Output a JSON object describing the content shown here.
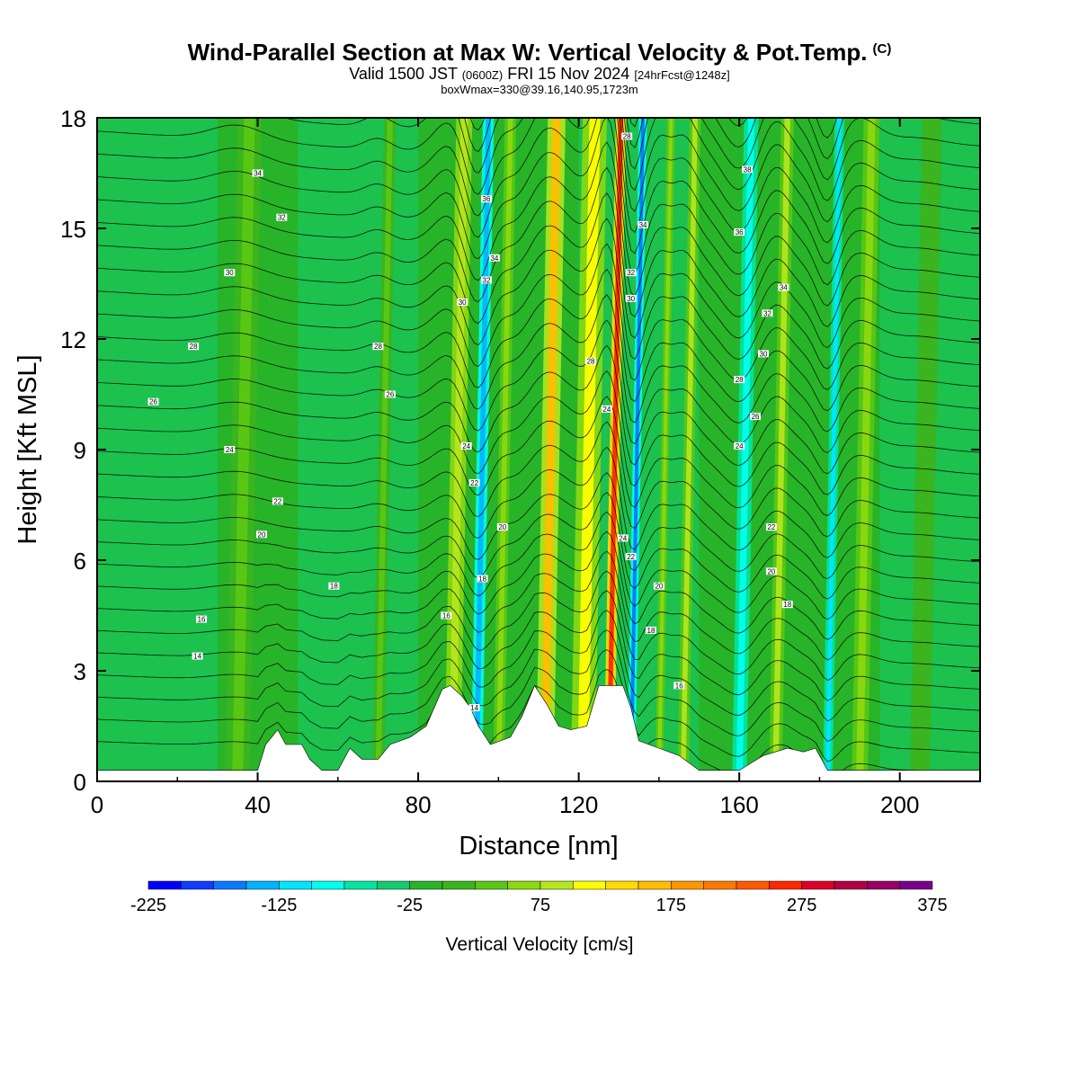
{
  "header": {
    "title": "Wind-Parallel Section at Max W: Vertical Velocity & Pot.Temp.",
    "copyright": "(C)",
    "valid_prefix": "Valid 1500 JST",
    "valid_utc": "(0600Z)",
    "valid_date": "FRI 15 Nov 2024",
    "forecast": "[24hrFcst@1248z]",
    "box_info": "boxWmax=330@39.16,140.95,1723m"
  },
  "chart_data": {
    "type": "heatmap",
    "xlabel": "Distance [nm]",
    "ylabel": "Height [Kft MSL]",
    "xlim": [
      0,
      220
    ],
    "ylim": [
      0,
      18
    ],
    "x_ticks": [
      "0",
      "40",
      "80",
      "120",
      "160",
      "200"
    ],
    "y_ticks": [
      "0",
      "3",
      "6",
      "9",
      "12",
      "15",
      "18"
    ],
    "colorbar": {
      "title": "Vertical Velocity [cm/s]",
      "labels": [
        "-225",
        "-125",
        "-25",
        "75",
        "175",
        "275",
        "375"
      ],
      "bounds": [
        -225,
        375
      ],
      "step": 25,
      "colors": [
        "#0000ff",
        "#0f3cff",
        "#0a78ff",
        "#00b4ff",
        "#00e6ff",
        "#00ffee",
        "#00e6a0",
        "#14cc6e",
        "#28b428",
        "#3cb41e",
        "#5ac814",
        "#8cd90f",
        "#b4e61e",
        "#ffff00",
        "#ffdc00",
        "#ffbe00",
        "#ff9600",
        "#ff7800",
        "#ff5a00",
        "#ff2800",
        "#dc0028",
        "#b40046",
        "#960064",
        "#78008c"
      ]
    },
    "velocity_bands": [
      {
        "x": 88.5,
        "width": 2.0,
        "w": 95
      },
      {
        "x": 94.5,
        "width": 1.4,
        "w": -150
      },
      {
        "x": 111.5,
        "width": 2.2,
        "w": 170
      },
      {
        "x": 121.0,
        "width": 3.0,
        "w": 110
      },
      {
        "x": 127.5,
        "width": 1.3,
        "w": 260
      },
      {
        "x": 133.0,
        "width": 1.0,
        "w": -170
      },
      {
        "x": 146.0,
        "width": 1.4,
        "w": 90
      },
      {
        "x": 160.0,
        "width": 1.8,
        "w": -100
      },
      {
        "x": 169.0,
        "width": 1.6,
        "w": 90
      },
      {
        "x": 182.0,
        "width": 1.2,
        "w": -120
      },
      {
        "x": 35.0,
        "width": 3.0,
        "w": 40
      },
      {
        "x": 70.0,
        "width": 1.5,
        "w": 30
      },
      {
        "x": 100.0,
        "width": 1.4,
        "w": 60
      },
      {
        "x": 140.0,
        "width": 1.0,
        "w": 70
      },
      {
        "x": 190.0,
        "width": 2.0,
        "w": 50
      },
      {
        "x": 205.0,
        "width": 2.5,
        "w": 10
      }
    ],
    "terrain": [
      [
        0,
        0.3
      ],
      [
        40,
        0.3
      ],
      [
        42,
        1.0
      ],
      [
        45,
        1.4
      ],
      [
        47,
        1.0
      ],
      [
        51,
        1.0
      ],
      [
        53,
        0.6
      ],
      [
        56,
        0.3
      ],
      [
        60,
        0.3
      ],
      [
        63,
        0.9
      ],
      [
        66,
        0.6
      ],
      [
        70,
        0.6
      ],
      [
        73,
        1.0
      ],
      [
        78,
        1.2
      ],
      [
        82,
        1.5
      ],
      [
        86,
        2.5
      ],
      [
        88,
        2.6
      ],
      [
        91,
        2.3
      ],
      [
        93,
        2.0
      ],
      [
        95,
        1.5
      ],
      [
        98,
        1.0
      ],
      [
        103,
        1.2
      ],
      [
        106,
        1.8
      ],
      [
        109,
        2.6
      ],
      [
        112,
        2.1
      ],
      [
        115,
        1.5
      ],
      [
        118,
        1.4
      ],
      [
        122,
        1.5
      ],
      [
        125,
        2.6
      ],
      [
        131,
        2.6
      ],
      [
        133,
        2.0
      ],
      [
        135,
        1.1
      ],
      [
        140,
        0.9
      ],
      [
        145,
        0.7
      ],
      [
        150,
        0.3
      ],
      [
        160,
        0.3
      ],
      [
        166,
        0.7
      ],
      [
        172,
        0.9
      ],
      [
        176,
        0.8
      ],
      [
        179,
        0.9
      ],
      [
        182,
        0.3
      ],
      [
        220,
        0.3
      ]
    ],
    "theta_levels": [
      12,
      14,
      16,
      18,
      20,
      22,
      24,
      26,
      28,
      30,
      32,
      34,
      36,
      38
    ],
    "contour_labels": [
      {
        "x": 40,
        "y": 16.5,
        "text": "34"
      },
      {
        "x": 46,
        "y": 15.3,
        "text": "32"
      },
      {
        "x": 33,
        "y": 13.8,
        "text": "30"
      },
      {
        "x": 24,
        "y": 11.8,
        "text": "28"
      },
      {
        "x": 14,
        "y": 10.3,
        "text": "26"
      },
      {
        "x": 33,
        "y": 9.0,
        "text": "24"
      },
      {
        "x": 45,
        "y": 7.6,
        "text": "22"
      },
      {
        "x": 41,
        "y": 6.7,
        "text": "20"
      },
      {
        "x": 59,
        "y": 5.3,
        "text": "18"
      },
      {
        "x": 26,
        "y": 4.4,
        "text": "16"
      },
      {
        "x": 25,
        "y": 3.4,
        "text": "14"
      },
      {
        "x": 70,
        "y": 11.8,
        "text": "28"
      },
      {
        "x": 73,
        "y": 10.5,
        "text": "26"
      },
      {
        "x": 97,
        "y": 15.8,
        "text": "36"
      },
      {
        "x": 99,
        "y": 14.2,
        "text": "34"
      },
      {
        "x": 97,
        "y": 13.6,
        "text": "32"
      },
      {
        "x": 91,
        "y": 13.0,
        "text": "30"
      },
      {
        "x": 92,
        "y": 9.1,
        "text": "24"
      },
      {
        "x": 94,
        "y": 8.1,
        "text": "22"
      },
      {
        "x": 101,
        "y": 6.9,
        "text": "20"
      },
      {
        "x": 96,
        "y": 5.5,
        "text": "18"
      },
      {
        "x": 87,
        "y": 4.5,
        "text": "16"
      },
      {
        "x": 94,
        "y": 2.0,
        "text": "14"
      },
      {
        "x": 123,
        "y": 11.4,
        "text": "28"
      },
      {
        "x": 127,
        "y": 10.1,
        "text": "24"
      },
      {
        "x": 132,
        "y": 17.5,
        "text": "28"
      },
      {
        "x": 136,
        "y": 15.1,
        "text": "34"
      },
      {
        "x": 133,
        "y": 13.8,
        "text": "32"
      },
      {
        "x": 133,
        "y": 13.1,
        "text": "30"
      },
      {
        "x": 131,
        "y": 6.6,
        "text": "24"
      },
      {
        "x": 133,
        "y": 6.1,
        "text": "22"
      },
      {
        "x": 140,
        "y": 5.3,
        "text": "20"
      },
      {
        "x": 138,
        "y": 4.1,
        "text": "18"
      },
      {
        "x": 145,
        "y": 2.6,
        "text": "16"
      },
      {
        "x": 162,
        "y": 16.6,
        "text": "38"
      },
      {
        "x": 160,
        "y": 14.9,
        "text": "36"
      },
      {
        "x": 171,
        "y": 13.4,
        "text": "34"
      },
      {
        "x": 167,
        "y": 12.7,
        "text": "32"
      },
      {
        "x": 166,
        "y": 11.6,
        "text": "30"
      },
      {
        "x": 160,
        "y": 10.9,
        "text": "28"
      },
      {
        "x": 164,
        "y": 9.9,
        "text": "26"
      },
      {
        "x": 160,
        "y": 9.1,
        "text": "24"
      },
      {
        "x": 168,
        "y": 6.9,
        "text": "22"
      },
      {
        "x": 168,
        "y": 5.7,
        "text": "20"
      },
      {
        "x": 172,
        "y": 4.8,
        "text": "18"
      }
    ]
  }
}
